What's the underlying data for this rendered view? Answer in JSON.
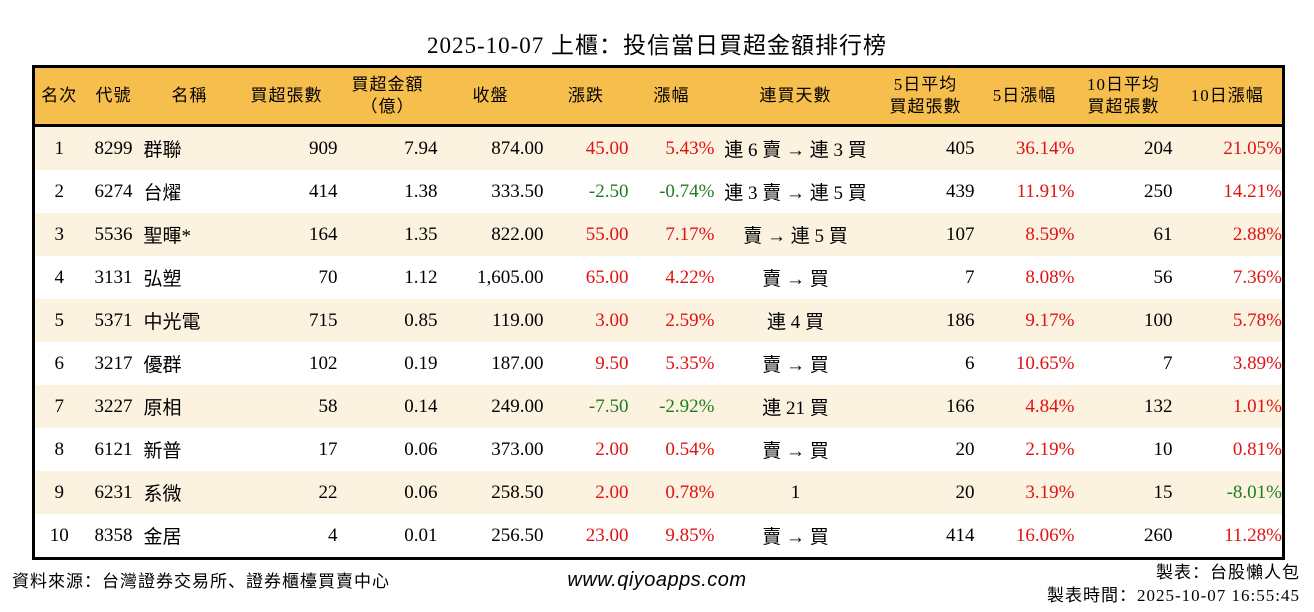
{
  "title": "2025-10-07 上櫃：投信當日買超金額排行榜",
  "colors": {
    "up": "#e01212",
    "down": "#1e7d1e",
    "header_bg": "#f6be4d",
    "row_alt": "#fbf2df",
    "border": "#000000"
  },
  "table": {
    "header_display": [
      "名次",
      "代號",
      "名稱",
      "買超張數",
      "買超金額\n（億）",
      "收盤",
      "漲跌",
      "漲幅",
      "連買天數",
      "5日平均\n買超張數",
      "5日漲幅",
      "10日平均\n買超張數",
      "10日漲幅"
    ],
    "column_keys": [
      "rank",
      "code",
      "name",
      "net_buy_lots",
      "net_buy_amount_100m",
      "close",
      "change",
      "change_pct",
      "buy_streak",
      "avg5d_net_buy_lots",
      "pct_5d",
      "avg10d_net_buy_lots",
      "pct_10d"
    ],
    "signed_column_indexes": [
      6,
      7,
      10,
      12
    ]
  },
  "chart_data": {
    "type": "table",
    "title": "2025-10-07 上櫃：投信當日買超金額排行榜",
    "columns": [
      "名次",
      "代號",
      "名稱",
      "買超張數",
      "買超金額（億）",
      "收盤",
      "漲跌",
      "漲幅",
      "連買天數",
      "5日平均買超張數",
      "5日漲幅",
      "10日平均買超張數",
      "10日漲幅"
    ],
    "rows": [
      [
        "1",
        "8299",
        "群聯",
        "909",
        "7.94",
        "874.00",
        "45.00",
        "5.43%",
        "連 6 賣 → 連 3 買",
        "405",
        "36.14%",
        "204",
        "21.05%"
      ],
      [
        "2",
        "6274",
        "台燿",
        "414",
        "1.38",
        "333.50",
        "-2.50",
        "-0.74%",
        "連 3 賣 → 連 5 買",
        "439",
        "11.91%",
        "250",
        "14.21%"
      ],
      [
        "3",
        "5536",
        "聖暉*",
        "164",
        "1.35",
        "822.00",
        "55.00",
        "7.17%",
        "賣 → 連 5 買",
        "107",
        "8.59%",
        "61",
        "2.88%"
      ],
      [
        "4",
        "3131",
        "弘塑",
        "70",
        "1.12",
        "1,605.00",
        "65.00",
        "4.22%",
        "賣 → 買",
        "7",
        "8.08%",
        "56",
        "7.36%"
      ],
      [
        "5",
        "5371",
        "中光電",
        "715",
        "0.85",
        "119.00",
        "3.00",
        "2.59%",
        "連 4 買",
        "186",
        "9.17%",
        "100",
        "5.78%"
      ],
      [
        "6",
        "3217",
        "優群",
        "102",
        "0.19",
        "187.00",
        "9.50",
        "5.35%",
        "賣 → 買",
        "6",
        "10.65%",
        "7",
        "3.89%"
      ],
      [
        "7",
        "3227",
        "原相",
        "58",
        "0.14",
        "249.00",
        "-7.50",
        "-2.92%",
        "連 21 買",
        "166",
        "4.84%",
        "132",
        "1.01%"
      ],
      [
        "8",
        "6121",
        "新普",
        "17",
        "0.06",
        "373.00",
        "2.00",
        "0.54%",
        "賣 → 買",
        "20",
        "2.19%",
        "10",
        "0.81%"
      ],
      [
        "9",
        "6231",
        "系微",
        "22",
        "0.06",
        "258.50",
        "2.00",
        "0.78%",
        "1",
        "20",
        "3.19%",
        "15",
        "-8.01%"
      ],
      [
        "10",
        "8358",
        "金居",
        "4",
        "0.01",
        "256.50",
        "23.00",
        "9.85%",
        "賣 → 買",
        "414",
        "16.06%",
        "260",
        "11.28%"
      ]
    ]
  },
  "footer": {
    "source": "資料來源：台灣證券交易所、證券櫃檯買賣中心",
    "website": "www.qiyoapps.com",
    "maker": "製表：台股懶人包",
    "made_time": "製表時間：2025-10-07 16:55:45"
  }
}
